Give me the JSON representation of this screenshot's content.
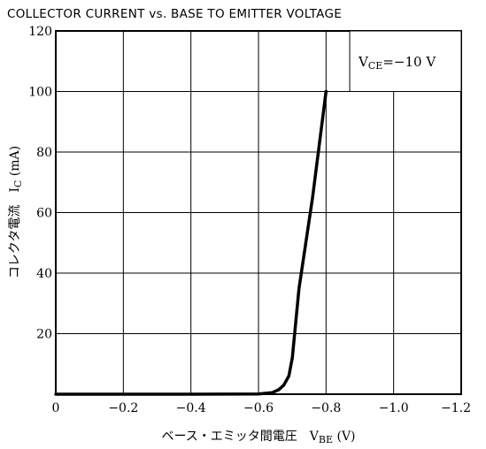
{
  "chart_data": {
    "type": "line",
    "title": "COLLECTOR CURRENT vs. BASE TO EMITTER VOLTAGE",
    "xlabel": {
      "text": "ベース・エミッタ間電圧",
      "symbol": "V",
      "subscript": "BE",
      "unit": "(V)"
    },
    "ylabel": {
      "text": "コレクタ電流",
      "symbol": "I",
      "subscript": "C",
      "unit": "(mA)"
    },
    "xlim": [
      0,
      -1.2
    ],
    "ylim": [
      0,
      120
    ],
    "x_ticks": [
      {
        "value": 0,
        "label": "0"
      },
      {
        "value": -0.2,
        "label": "−0.2"
      },
      {
        "value": -0.4,
        "label": "−0.4"
      },
      {
        "value": -0.6,
        "label": "−0.6"
      },
      {
        "value": -0.8,
        "label": "−0.8"
      },
      {
        "value": -1.0,
        "label": "−1.0"
      },
      {
        "value": -1.2,
        "label": "−1.2"
      }
    ],
    "y_ticks": [
      {
        "value": 20,
        "label": "20"
      },
      {
        "value": 40,
        "label": "40"
      },
      {
        "value": 60,
        "label": "60"
      },
      {
        "value": 80,
        "label": "80"
      },
      {
        "value": 100,
        "label": "100"
      },
      {
        "value": 120,
        "label": "120"
      }
    ],
    "grid": true,
    "annotation": {
      "symbol": "V",
      "subscript": "CE",
      "text": "=−10 V",
      "placement": "top-right"
    },
    "series": [
      {
        "x": [
          0,
          -0.2,
          -0.4,
          -0.6,
          -0.64,
          -0.66,
          -0.675,
          -0.69,
          -0.7,
          -0.72,
          -0.76,
          -0.8
        ],
        "y": [
          0,
          0,
          0,
          0.1,
          0.5,
          1.5,
          3,
          6,
          12,
          35,
          65,
          100
        ]
      }
    ],
    "colors": {
      "line": "#000000",
      "grid": "#000000"
    }
  }
}
